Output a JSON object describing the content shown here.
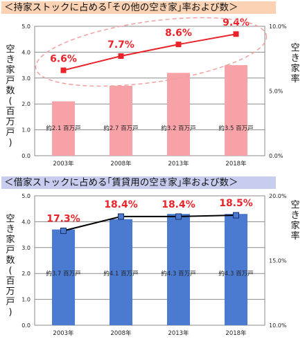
{
  "title1": "＜持家ストックに占める｢その他の空き家｣率および数＞",
  "title2": "＜借家ストックに占める｢賃貸用の空き家｣率および数＞",
  "chart_data": [
    {
      "type": "bar+line",
      "categories": [
        "2003年",
        "2008年",
        "2013年",
        "2018年"
      ],
      "left_axis": {
        "label": "空き家戸数(百万戸)",
        "min": 0,
        "max": 5,
        "ticks": [
          "0.0",
          "1.0",
          "2.0",
          "3.0",
          "4.0",
          "5.0"
        ]
      },
      "right_axis": {
        "label": "空き家率",
        "min": 0,
        "max": 10,
        "ticks": [
          "0.0%",
          "5.0%",
          "10.0%"
        ]
      },
      "bars": {
        "values": [
          2.1,
          2.7,
          3.2,
          3.5
        ],
        "labels": [
          "約2.1 百万戸",
          "約2.7 百万戸",
          "約3.2 百万戸",
          "約3.5 百万戸"
        ],
        "color": "#f7a2a6"
      },
      "line": {
        "values": [
          6.6,
          7.7,
          8.6,
          9.4
        ],
        "labels": [
          "6.6%",
          "7.7%",
          "8.6%",
          "9.4%"
        ],
        "color": "#e8242a"
      }
    },
    {
      "type": "bar+line",
      "categories": [
        "2003年",
        "2008年",
        "2013年",
        "2018年"
      ],
      "left_axis": {
        "label": "空き家戸数(百万戸)",
        "min": 0,
        "max": 5,
        "ticks": [
          "0.0",
          "1.0",
          "2.0",
          "3.0",
          "4.0",
          "5.0"
        ]
      },
      "right_axis": {
        "label": "空き家率",
        "min": 10,
        "max": 20,
        "ticks": [
          "10.0%",
          "15.0%",
          "20.0%"
        ]
      },
      "bars": {
        "values": [
          3.7,
          4.1,
          4.3,
          4.3
        ],
        "labels": [
          "約3.7 百万戸",
          "約4.1 百万戸",
          "約4.3 百万戸",
          "約4.3 百万戸"
        ],
        "color": "#4a7bd0"
      },
      "line": {
        "values": [
          17.3,
          18.4,
          18.4,
          18.5
        ],
        "labels": [
          "17.3%",
          "18.4%",
          "18.4%",
          "18.5%"
        ],
        "color": "#000000"
      }
    }
  ]
}
